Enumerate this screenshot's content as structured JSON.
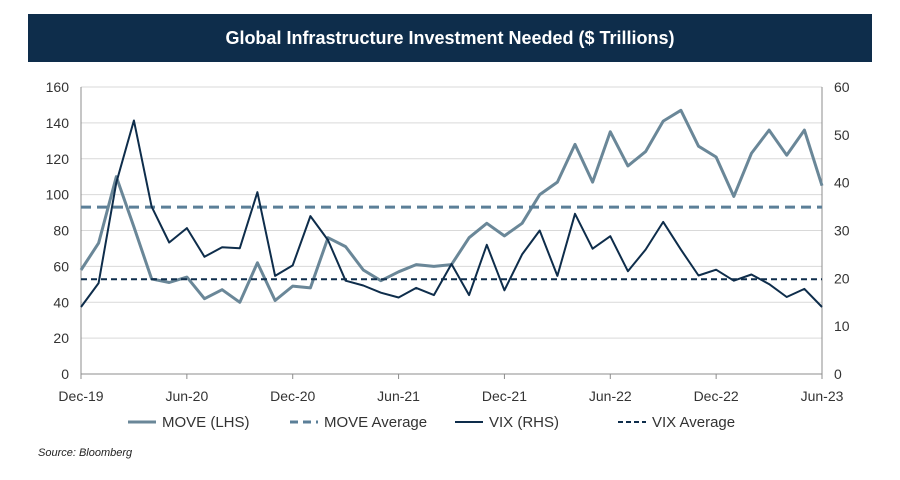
{
  "chart_data": {
    "type": "line",
    "title": "Global Infrastructure Investment Needed ($ Trillions)",
    "source": "Source: Bloomberg",
    "x_tick_labels": [
      "Dec-19",
      "Jun-20",
      "Dec-20",
      "Jun-21",
      "Dec-21",
      "Jun-22",
      "Dec-22",
      "Jun-23"
    ],
    "y_left": {
      "min": 0,
      "max": 160,
      "step": 20,
      "ticks": [
        "0",
        "20",
        "40",
        "60",
        "80",
        "100",
        "120",
        "140",
        "160"
      ]
    },
    "y_right": {
      "min": 0,
      "max": 60,
      "step": 10,
      "ticks": [
        "0",
        "10",
        "20",
        "30",
        "40",
        "50",
        "60"
      ]
    },
    "series": [
      {
        "name": "MOVE (LHS)",
        "axis": "left",
        "style": "solid",
        "color": "#6a8798",
        "values": [
          58,
          73,
          110,
          82,
          53,
          51,
          54,
          42,
          47,
          40,
          62,
          41,
          49,
          48,
          76,
          71,
          58,
          52,
          57,
          61,
          60,
          61,
          76,
          84,
          77,
          84,
          100,
          107,
          128,
          107,
          135,
          116,
          124,
          141,
          147,
          127,
          121,
          99,
          123,
          136,
          122,
          136,
          105
        ]
      },
      {
        "name": "MOVE Average",
        "axis": "left",
        "style": "dashed",
        "color": "#5b7f98",
        "value": 93
      },
      {
        "name": "VIX (RHS)",
        "axis": "right",
        "style": "solid",
        "color": "#0e2d4b",
        "values": [
          14,
          19,
          40,
          53,
          35,
          27.5,
          30.5,
          24.5,
          26.5,
          26.3,
          38,
          20.5,
          22.7,
          33,
          28,
          19.5,
          18.5,
          17,
          16,
          18,
          16.5,
          23,
          16.5,
          27,
          17.5,
          25,
          30,
          20.5,
          33.5,
          26.2,
          28.8,
          21.5,
          26,
          31.8,
          26,
          20.6,
          21.8,
          19.5,
          20.8,
          18.8,
          16.1,
          17.8,
          14
        ]
      },
      {
        "name": "VIX Average",
        "axis": "right",
        "style": "dashed",
        "color": "#0e2d4b",
        "value": 19.8
      }
    ]
  }
}
